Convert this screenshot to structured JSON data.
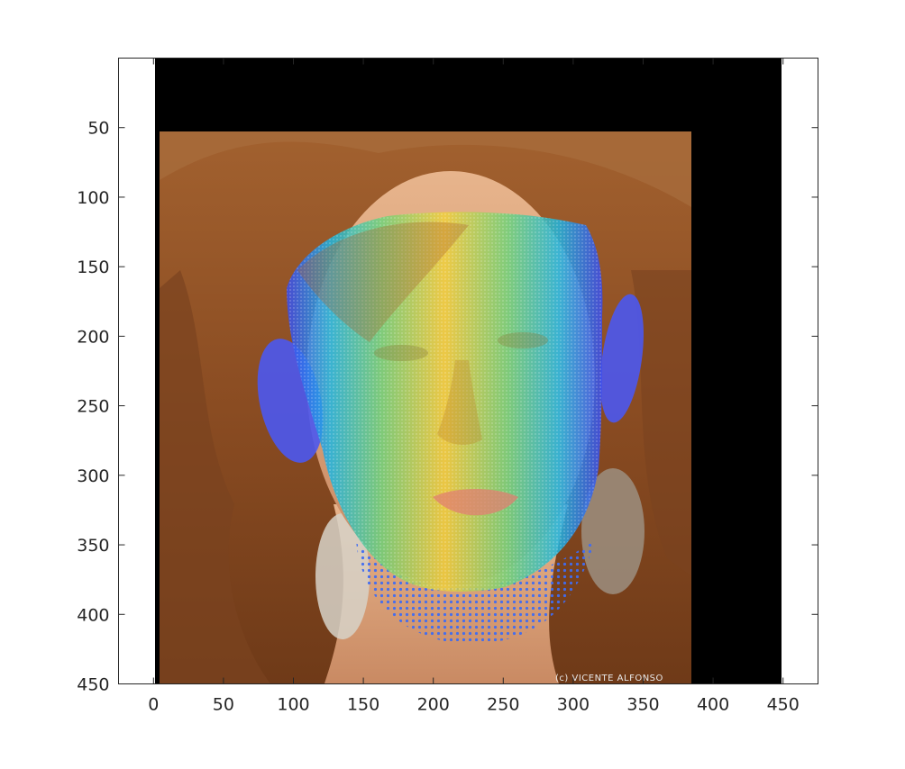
{
  "figure": {
    "background_color": "#ffffff",
    "axes_color": "#262626",
    "letterbox_color": "#000000",
    "image_description_tags": [
      "photo-face",
      "3d-face-mesh-overlay"
    ],
    "mesh_colormap": [
      "#3b4bf0",
      "#1fb6e0",
      "#3ec98a",
      "#b8d24a",
      "#f5c832"
    ],
    "watermark": "(c) VICENTE ALFONSO"
  },
  "axes": {
    "xlim": [
      -25,
      475
    ],
    "ylim": [
      450,
      0
    ],
    "x_ticks": [
      0,
      50,
      100,
      150,
      200,
      250,
      300,
      350,
      400,
      450
    ],
    "x_tick_labels": [
      "0",
      "50",
      "100",
      "150",
      "200",
      "250",
      "300",
      "350",
      "400",
      "450"
    ],
    "y_ticks": [
      50,
      100,
      150,
      200,
      250,
      300,
      350,
      400,
      450
    ],
    "y_tick_labels": [
      "50",
      "100",
      "150",
      "200",
      "250",
      "300",
      "350",
      "400",
      "450"
    ],
    "y_direction": "reverse",
    "grid": false
  }
}
